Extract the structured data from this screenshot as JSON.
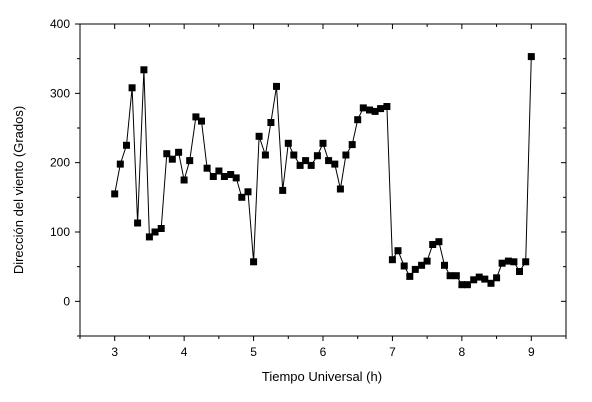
{
  "chart_data": {
    "type": "line",
    "title": "",
    "xlabel": "Tiempo Universal (h)",
    "ylabel": "Dirección del viento (Grados)",
    "xlim": [
      2.5,
      9.5
    ],
    "ylim": [
      -50,
      400
    ],
    "xticks": [
      3,
      4,
      5,
      6,
      7,
      8,
      9
    ],
    "xtick_labels": [
      "3",
      "4",
      "5",
      "6",
      "7",
      "8",
      "9"
    ],
    "yticks": [
      0,
      100,
      200,
      300,
      400
    ],
    "ytick_labels": [
      "0",
      "100",
      "200",
      "300",
      "400"
    ],
    "grid": false,
    "marker": "square",
    "line_color": "#000000",
    "marker_color": "#000000",
    "series": [
      {
        "x": [
          3.0,
          3.08,
          3.17,
          3.25,
          3.33,
          3.42,
          3.5,
          3.58,
          3.67,
          3.75,
          3.83,
          3.92,
          4.0,
          4.08,
          4.17,
          4.25,
          4.33,
          4.42,
          4.5,
          4.58,
          4.67,
          4.75,
          4.83,
          4.92,
          5.0,
          5.08,
          5.17,
          5.25,
          5.33,
          5.42,
          5.5,
          5.58,
          5.67,
          5.75,
          5.83,
          5.92,
          6.0,
          6.08,
          6.17,
          6.25,
          6.33,
          6.42,
          6.5,
          6.58,
          6.67,
          6.75,
          6.83,
          6.92,
          7.0,
          7.08,
          7.17,
          7.25,
          7.33,
          7.42,
          7.5,
          7.58,
          7.67,
          7.75,
          7.83,
          7.92,
          8.0,
          8.08,
          8.17,
          8.25,
          8.33,
          8.42,
          8.5,
          8.58,
          8.67,
          8.75,
          8.83,
          8.92,
          9.0
        ],
        "y": [
          155,
          198,
          225,
          308,
          113,
          334,
          93,
          100,
          105,
          213,
          205,
          215,
          175,
          203,
          266,
          260,
          192,
          180,
          188,
          180,
          183,
          178,
          150,
          158,
          57,
          238,
          211,
          258,
          310,
          160,
          228,
          211,
          196,
          203,
          196,
          210,
          228,
          203,
          198,
          162,
          211,
          226,
          262,
          279,
          276,
          274,
          278,
          281,
          60,
          73,
          51,
          36,
          46,
          52,
          58,
          82,
          86,
          52,
          37,
          37,
          24,
          24,
          31,
          35,
          32,
          26,
          34,
          55,
          58,
          57,
          43,
          57,
          353
        ]
      }
    ]
  }
}
